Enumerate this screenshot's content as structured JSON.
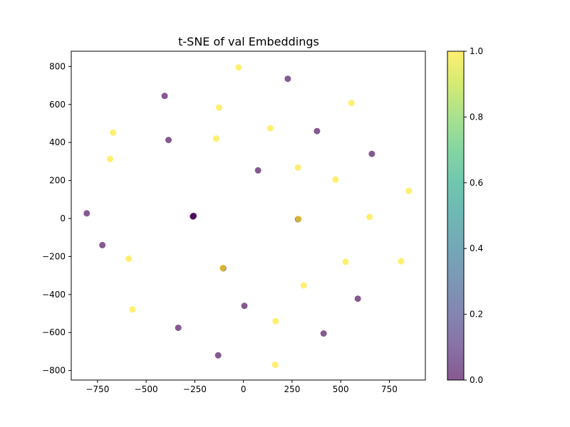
{
  "chart_data": {
    "type": "scatter",
    "title": "t-SNE of val Embeddings",
    "xlabel": "",
    "ylabel": "",
    "xlim": [
      -885,
      935
    ],
    "ylim": [
      -850,
      880
    ],
    "xticks": [
      -750,
      -500,
      -250,
      0,
      250,
      500,
      750
    ],
    "yticks": [
      -800,
      -600,
      -400,
      -200,
      0,
      200,
      400,
      600,
      800
    ],
    "xtick_labels": [
      "−750",
      "−500",
      "−250",
      "0",
      "250",
      "500",
      "750"
    ],
    "ytick_labels": [
      "−800",
      "−600",
      "−400",
      "−200",
      "0",
      "200",
      "400",
      "600",
      "800"
    ],
    "grid": false,
    "colormap": "viridis",
    "colorbar": {
      "range": [
        0,
        1
      ],
      "ticks": [
        0,
        0.2,
        0.4,
        0.6,
        0.8,
        1.0
      ],
      "tick_labels": [
        "0.0",
        "0.2",
        "0.4",
        "0.6",
        "0.8",
        "1.0"
      ]
    },
    "point_alpha": 0.65,
    "points": [
      {
        "x": -25,
        "y": 795,
        "label": 1
      },
      {
        "x": 228,
        "y": 735,
        "label": 0
      },
      {
        "x": -405,
        "y": 645,
        "label": 0
      },
      {
        "x": 555,
        "y": 608,
        "label": 1
      },
      {
        "x": -125,
        "y": 583,
        "label": 1
      },
      {
        "x": 138,
        "y": 475,
        "label": 1
      },
      {
        "x": -670,
        "y": 452,
        "label": 1
      },
      {
        "x": 378,
        "y": 460,
        "label": 0
      },
      {
        "x": -140,
        "y": 420,
        "label": 1
      },
      {
        "x": -385,
        "y": 413,
        "label": 0
      },
      {
        "x": 660,
        "y": 340,
        "label": 0
      },
      {
        "x": -685,
        "y": 313,
        "label": 1
      },
      {
        "x": 280,
        "y": 268,
        "label": 1
      },
      {
        "x": 75,
        "y": 253,
        "label": 0
      },
      {
        "x": 473,
        "y": 205,
        "label": 1
      },
      {
        "x": 850,
        "y": 145,
        "label": 1
      },
      {
        "x": -805,
        "y": 27,
        "label": 0
      },
      {
        "x": 648,
        "y": 8,
        "label": 1
      },
      {
        "x": -258,
        "y": 12,
        "label": 0
      },
      {
        "x": -256,
        "y": 14,
        "label": 0
      },
      {
        "x": -260,
        "y": 10,
        "label": 0
      },
      {
        "x": 282,
        "y": -2,
        "label": 1
      },
      {
        "x": 281,
        "y": -4,
        "label": 0
      },
      {
        "x": 283,
        "y": -3,
        "label": 1
      },
      {
        "x": -725,
        "y": -140,
        "label": 0
      },
      {
        "x": -590,
        "y": -212,
        "label": 1
      },
      {
        "x": 525,
        "y": -228,
        "label": 1
      },
      {
        "x": 810,
        "y": -225,
        "label": 1
      },
      {
        "x": -105,
        "y": -260,
        "label": 1
      },
      {
        "x": -104,
        "y": -262,
        "label": 0
      },
      {
        "x": -106,
        "y": -261,
        "label": 1
      },
      {
        "x": 310,
        "y": -352,
        "label": 1
      },
      {
        "x": 588,
        "y": -422,
        "label": 0
      },
      {
        "x": 5,
        "y": -460,
        "label": 0
      },
      {
        "x": -570,
        "y": -478,
        "label": 1
      },
      {
        "x": 165,
        "y": -540,
        "label": 1
      },
      {
        "x": -335,
        "y": -575,
        "label": 0
      },
      {
        "x": 412,
        "y": -605,
        "label": 0
      },
      {
        "x": -130,
        "y": -720,
        "label": 0
      },
      {
        "x": 163,
        "y": -770,
        "label": 1
      }
    ]
  }
}
